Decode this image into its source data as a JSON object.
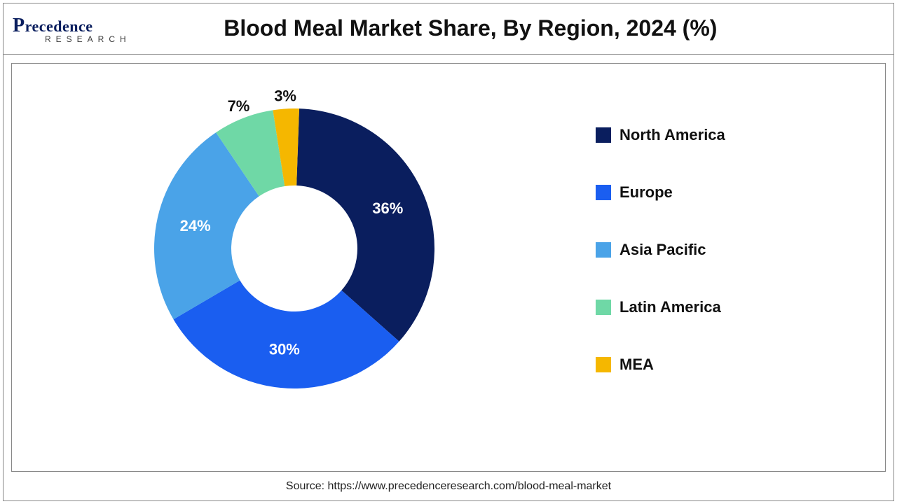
{
  "logo": {
    "main_first": "P",
    "main_rest": "recedence",
    "sub": "RESEARCH"
  },
  "title": "Blood Meal Market Share, By Region, 2024 (%)",
  "chart": {
    "type": "donut",
    "inner_radius_ratio": 0.45,
    "outer_radius": 200,
    "start_angle_deg": 2,
    "background_color": "#ffffff",
    "label_fontsize": 22,
    "label_fontweight": 700,
    "slices": [
      {
        "label": "North America",
        "value": 36,
        "color": "#0a1e5e",
        "label_color": "#ffffff",
        "label_pos": "inside"
      },
      {
        "label": "Europe",
        "value": 30,
        "color": "#1a5ef0",
        "label_color": "#ffffff",
        "label_pos": "inside"
      },
      {
        "label": "Asia Pacific",
        "value": 24,
        "color": "#4aa3e8",
        "label_color": "#ffffff",
        "label_pos": "inside"
      },
      {
        "label": "Latin America",
        "value": 7,
        "color": "#6fd8a6",
        "label_color": "#111111",
        "label_pos": "outside"
      },
      {
        "label": "MEA",
        "value": 3,
        "color": "#f5b700",
        "label_color": "#111111",
        "label_pos": "outside"
      }
    ]
  },
  "legend": {
    "position": "right",
    "items": [
      {
        "label": "North America",
        "color": "#0a1e5e"
      },
      {
        "label": "Europe",
        "color": "#1a5ef0"
      },
      {
        "label": "Asia Pacific",
        "color": "#4aa3e8"
      },
      {
        "label": "Latin America",
        "color": "#6fd8a6"
      },
      {
        "label": "MEA",
        "color": "#f5b700"
      }
    ]
  },
  "source": "Source: https://www.precedenceresearch.com/blood-meal-market"
}
